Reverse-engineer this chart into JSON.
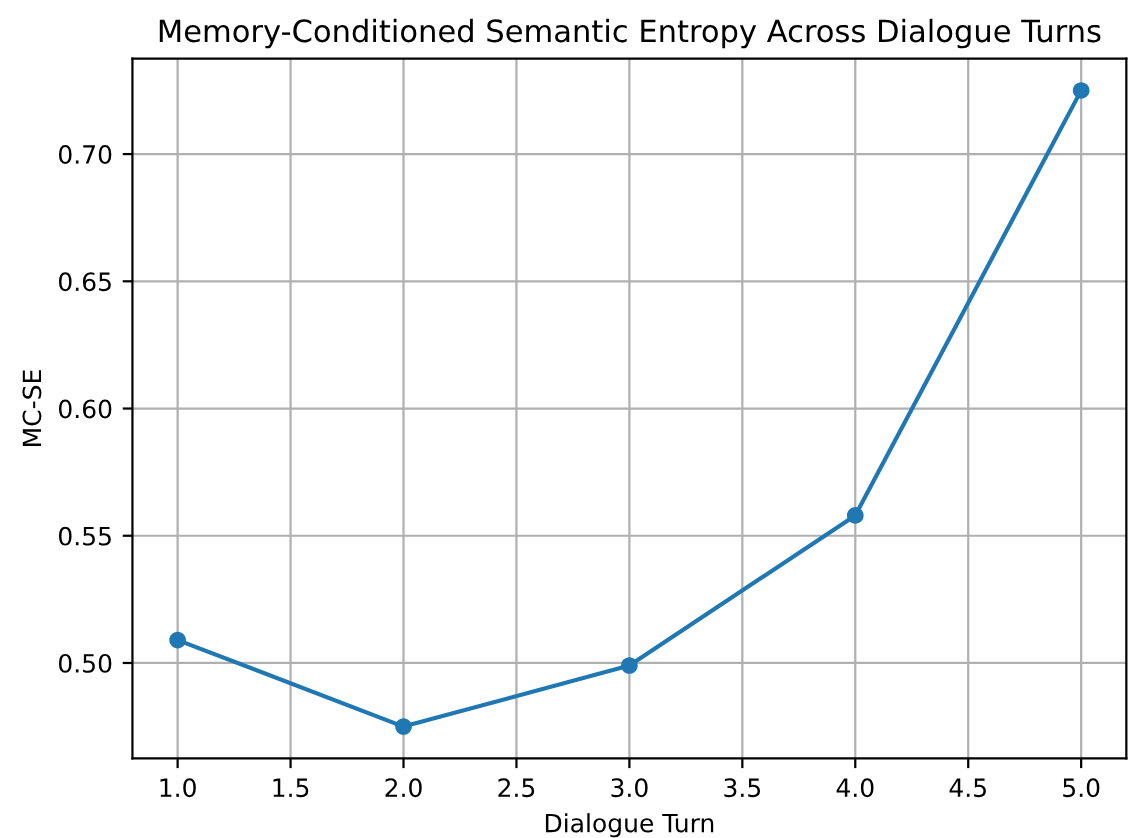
{
  "chart_data": {
    "type": "line",
    "title": "Memory-Conditioned Semantic Entropy Across Dialogue Turns",
    "xlabel": "Dialogue Turn",
    "ylabel": "MC-SE",
    "x": [
      1,
      2,
      3,
      4,
      5
    ],
    "series": [
      {
        "color": "#1f77b4",
        "values": [
          0.509,
          0.475,
          0.499,
          0.558,
          0.725
        ]
      }
    ],
    "xlim": [
      0.8,
      5.2
    ],
    "xticks": [
      {
        "value": 1,
        "label": "1.0"
      },
      1.5,
      {
        "value": 2,
        "label": "2.0"
      },
      2.5,
      {
        "value": 3,
        "label": "3.0"
      },
      3.5,
      {
        "value": 4,
        "label": "4.0"
      },
      4.5,
      {
        "value": 5,
        "label": "5.0"
      }
    ],
    "ylim": [
      0.4625,
      0.7375
    ],
    "yticks": [
      {
        "value": 0.5,
        "label": "0.50"
      },
      0.55,
      {
        "value": 0.6,
        "label": "0.60"
      },
      0.65,
      {
        "value": 0.7,
        "label": "0.70"
      }
    ],
    "grid": true,
    "marker": "circle",
    "line_style": "solid"
  }
}
